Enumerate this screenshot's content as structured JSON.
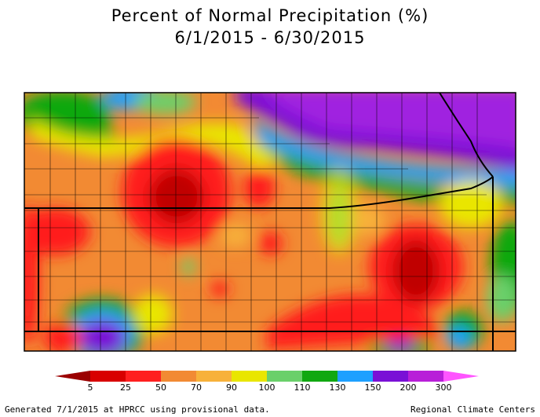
{
  "title": "Percent of Normal Precipitation (%)",
  "date_range": "6/1/2015 - 6/30/2015",
  "legend": {
    "labels": [
      "5",
      "25",
      "50",
      "70",
      "90",
      "100",
      "110",
      "130",
      "150",
      "200",
      "300"
    ],
    "colors": [
      "#9b0000",
      "#d80000",
      "#ff1f1f",
      "#f28a33",
      "#f7b13a",
      "#e9e600",
      "#6ad06a",
      "#10a810",
      "#1ea0ff",
      "#7a10d6",
      "#b81fd8",
      "#ff55ff"
    ]
  },
  "footer": {
    "left": "Generated 7/1/2015 at HPRCC using provisional data.",
    "right": "Regional Climate Centers"
  }
}
